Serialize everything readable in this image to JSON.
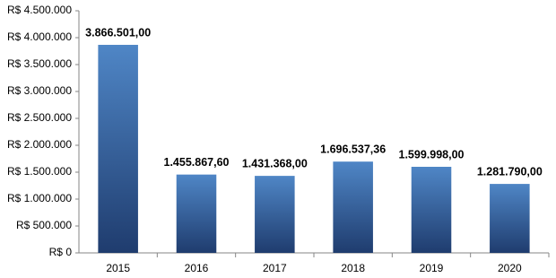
{
  "chart_data": {
    "type": "bar",
    "categories": [
      "2015",
      "2016",
      "2017",
      "2018",
      "2019",
      "2020"
    ],
    "values": [
      3866501.0,
      1455867.6,
      1431368.0,
      1696537.36,
      1599998.0,
      1281790.0
    ],
    "value_labels": [
      "3.866.501,00",
      "1.455.867,60",
      "1.431.368,00",
      "1.696.537,36",
      "1.599.998,00",
      "1.281.790,00"
    ],
    "color": "#4f86c6",
    "ylim": [
      0,
      4500000
    ],
    "yticks": [
      {
        "value": 0,
        "label": "R$ 0"
      },
      {
        "value": 500000,
        "label": "R$ 500.000"
      },
      {
        "value": 1000000,
        "label": "R$ 1.000.000"
      },
      {
        "value": 1500000,
        "label": "R$ 1.500.000"
      },
      {
        "value": 2000000,
        "label": "R$ 2.000.000"
      },
      {
        "value": 2500000,
        "label": "R$ 2.500.000"
      },
      {
        "value": 3000000,
        "label": "R$ 3.000.000"
      },
      {
        "value": 3500000,
        "label": "R$ 3.500.000"
      },
      {
        "value": 4000000,
        "label": "R$ 4.000.000"
      },
      {
        "value": 4500000,
        "label": "R$ 4.500.000"
      }
    ],
    "grid": false
  }
}
